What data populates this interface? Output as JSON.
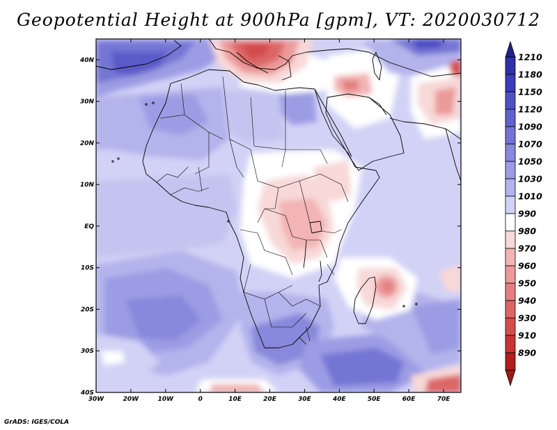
{
  "title": "Geopotential Height at 900hPa [gpm], VT: 2020030712",
  "credit": "GrADS: IGES/COLA",
  "map": {
    "lon_range": [
      -30,
      75
    ],
    "lat_range": [
      -40,
      45
    ],
    "lat_ticks": [
      {
        "value": 40,
        "label": "40N"
      },
      {
        "value": 30,
        "label": "30N"
      },
      {
        "value": 20,
        "label": "20N"
      },
      {
        "value": 10,
        "label": "10N"
      },
      {
        "value": 0,
        "label": "EQ"
      },
      {
        "value": -10,
        "label": "10S"
      },
      {
        "value": -20,
        "label": "20S"
      },
      {
        "value": -30,
        "label": "30S"
      },
      {
        "value": -40,
        "label": "40S"
      }
    ],
    "lon_ticks": [
      {
        "value": -30,
        "label": "30W"
      },
      {
        "value": -20,
        "label": "20W"
      },
      {
        "value": -10,
        "label": "10W"
      },
      {
        "value": 0,
        "label": "0"
      },
      {
        "value": 10,
        "label": "10E"
      },
      {
        "value": 20,
        "label": "20E"
      },
      {
        "value": 30,
        "label": "30E"
      },
      {
        "value": 40,
        "label": "40E"
      },
      {
        "value": 50,
        "label": "50E"
      },
      {
        "value": 60,
        "label": "60E"
      },
      {
        "value": 70,
        "label": "70E"
      }
    ]
  },
  "colorbar": {
    "levels": [
      {
        "label": "1210",
        "color": "#3030a8"
      },
      {
        "label": "1180",
        "color": "#3c3cb8"
      },
      {
        "label": "1150",
        "color": "#5050c4"
      },
      {
        "label": "1120",
        "color": "#6262cc"
      },
      {
        "label": "1090",
        "color": "#7474d4"
      },
      {
        "label": "1070",
        "color": "#8888dc"
      },
      {
        "label": "1050",
        "color": "#9c9ce4"
      },
      {
        "label": "1030",
        "color": "#b4b4ec"
      },
      {
        "label": "1010",
        "color": "#d2d2f6"
      },
      {
        "label": "990",
        "color": "#ffffff"
      },
      {
        "label": "980",
        "color": "#f8d8d8"
      },
      {
        "label": "970",
        "color": "#f2b4b4"
      },
      {
        "label": "960",
        "color": "#ec9a9a"
      },
      {
        "label": "950",
        "color": "#e48080"
      },
      {
        "label": "940",
        "color": "#dc6666"
      },
      {
        "label": "930",
        "color": "#d44c4c"
      },
      {
        "label": "910",
        "color": "#c83434"
      },
      {
        "label": "890",
        "color": "#b01e1e"
      }
    ],
    "top_arrow_color": "#20208c",
    "bottom_arrow_color": "#a01818"
  }
}
